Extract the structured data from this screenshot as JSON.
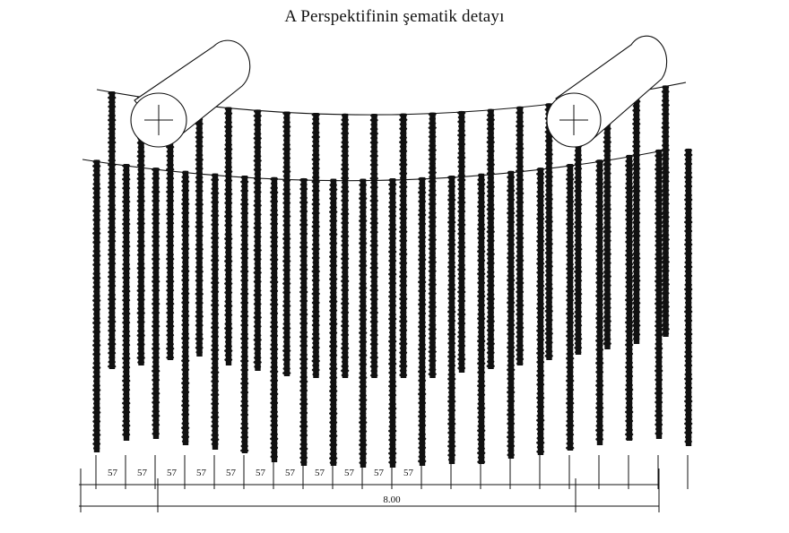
{
  "title": "A   Perspektifinin  şematik detayı",
  "colors": {
    "ink": "#111111",
    "background": "#ffffff"
  },
  "front_row_ends": [
    505,
    492,
    490,
    497,
    502,
    506,
    516,
    520,
    520,
    522,
    522,
    520,
    518,
    518,
    512,
    508,
    503,
    497,
    492,
    490,
    498
  ],
  "back_row_ends": [
    412,
    408,
    402,
    398,
    408,
    414,
    420,
    422,
    422,
    422,
    422,
    422,
    416,
    412,
    408,
    402,
    396,
    390,
    384,
    376
  ],
  "dimension_segments": [
    "57",
    "57",
    "57",
    "57",
    "57",
    "57",
    "57",
    "57",
    "57",
    "57",
    "57"
  ],
  "total_dimension": "8.00"
}
